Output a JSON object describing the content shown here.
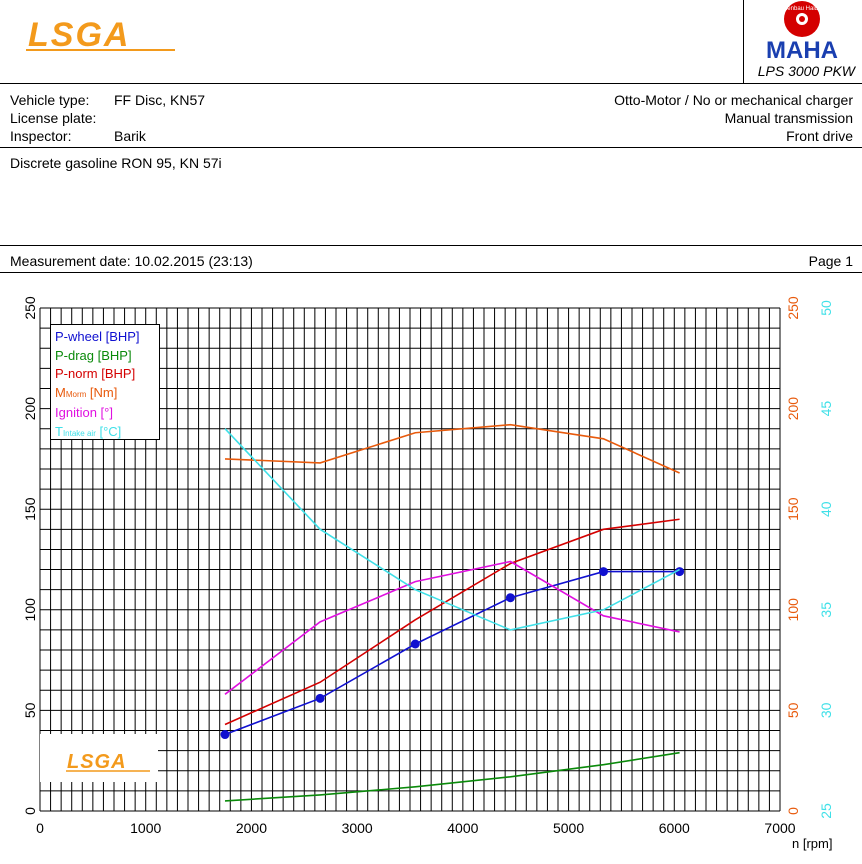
{
  "header": {
    "logo_text": "LSGA",
    "maha_ring_text": "Maschinenbau Haldenwang",
    "maha_text": "MAHA",
    "model": "LPS 3000 PKW"
  },
  "info": {
    "vehicle_type_label": "Vehicle type:",
    "vehicle_type_value": "FF Disc, KN57",
    "license_plate_label": "License plate:",
    "license_plate_value": "",
    "inspector_label": "Inspector:",
    "inspector_value": "Barik",
    "engine": "Otto-Motor / No or mechanical charger",
    "transmission": "Manual transmission",
    "drive": "Front drive"
  },
  "description": "Discrete gasoline RON 95, KN 57i",
  "measurement": {
    "date_label": "Measurement date: 10.02.2015 (23:13)",
    "page_label": "Page 1"
  },
  "legend": {
    "p_wheel": "P-wheel [BHP]",
    "p_drag": "P-drag [BHP]",
    "p_norm": "P-norm [BHP]",
    "m_norm_main": "M",
    "m_norm_sub": "Morm",
    "m_norm_unit": " [Nm]",
    "ignition": "Ignition [°]",
    "t_main": "T",
    "t_sub": "Intake air",
    "t_unit": " [°C]"
  },
  "chart_data": {
    "type": "line",
    "xlabel": "n [rpm]",
    "xlim": [
      0,
      7000
    ],
    "xticks": [
      0,
      1000,
      2000,
      3000,
      4000,
      5000,
      6000,
      7000
    ],
    "left_axis": {
      "ylim": [
        0,
        250
      ],
      "ticks": [
        0,
        50,
        100,
        150,
        200,
        250
      ]
    },
    "right_axis_nm": {
      "ylim": [
        0,
        250
      ],
      "ticks": [
        0,
        50,
        100,
        150,
        200,
        250
      ],
      "color": "#e85a0c"
    },
    "right_axis_temp": {
      "ylim": [
        25,
        50
      ],
      "ticks": [
        25,
        30,
        35,
        40,
        45,
        50
      ],
      "color": "#3fe0e8"
    },
    "grid": true,
    "legend_position": "top-left",
    "series": [
      {
        "name": "P-wheel [BHP]",
        "axis": "left",
        "color": "#1010d0",
        "markers": true,
        "x": [
          1750,
          2650,
          3550,
          4450,
          5330,
          6050
        ],
        "y": [
          38,
          56,
          83,
          106,
          119,
          119
        ]
      },
      {
        "name": "P-drag [BHP]",
        "axis": "left",
        "color": "#0a8a0a",
        "markers": false,
        "x": [
          1750,
          2650,
          3550,
          4450,
          5330,
          6050
        ],
        "y": [
          5,
          8,
          12,
          17,
          23,
          29
        ]
      },
      {
        "name": "P-norm [BHP]",
        "axis": "left",
        "color": "#d40000",
        "markers": false,
        "x": [
          1750,
          2650,
          3550,
          4450,
          5330,
          6050
        ],
        "y": [
          43,
          64,
          95,
          123,
          140,
          145
        ]
      },
      {
        "name": "M_Morm [Nm]",
        "axis": "right_nm",
        "color": "#e85a0c",
        "markers": false,
        "x": [
          1750,
          2650,
          3550,
          4450,
          5330,
          6050
        ],
        "y": [
          175,
          173,
          188,
          192,
          185,
          168
        ]
      },
      {
        "name": "Ignition [°]",
        "axis": "left",
        "color": "#e010e0",
        "markers": false,
        "x": [
          1750,
          2650,
          3550,
          4450,
          5330,
          6050
        ],
        "y": [
          58,
          94,
          114,
          124,
          97,
          89
        ]
      },
      {
        "name": "T_Intake air [°C]",
        "axis": "right_temp",
        "color": "#3fe0e8",
        "markers": false,
        "x": [
          1750,
          2650,
          3550,
          4450,
          5330,
          6050
        ],
        "y": [
          44.0,
          39.0,
          36.0,
          34.0,
          35.0,
          37.0
        ]
      }
    ]
  }
}
